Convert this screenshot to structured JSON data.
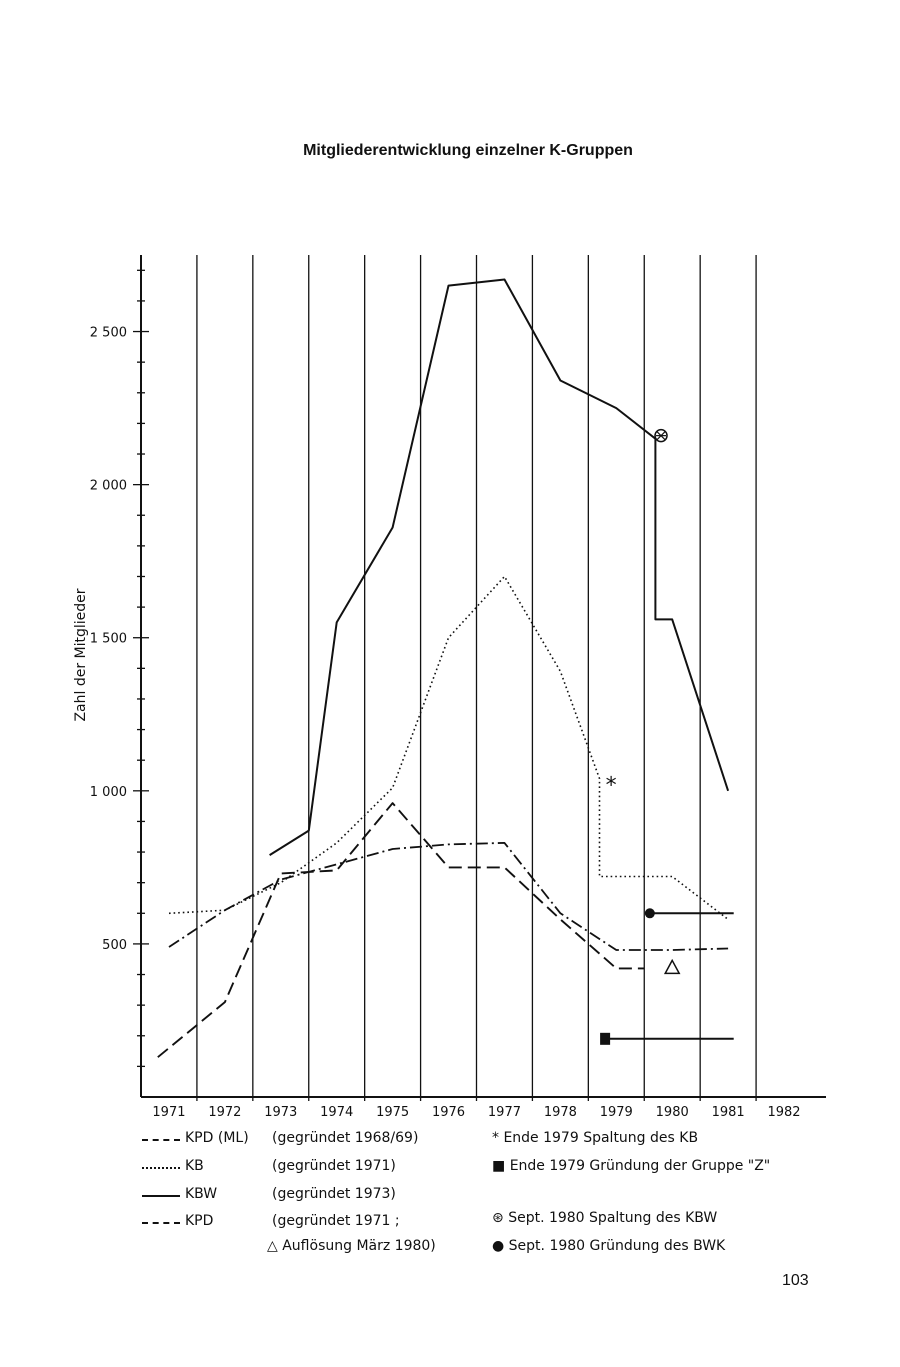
{
  "page_title": "Mitgliederentwicklung einzelner K-Gruppen",
  "page_number": "103",
  "chart_data": {
    "type": "line",
    "title": "Mitgliederentwicklung einzelner K-Gruppen",
    "xlabel": "",
    "ylabel": "Zahl der Mitglieder",
    "x_categories": [
      "1971",
      "1972",
      "1973",
      "1974",
      "1975",
      "1976",
      "1977",
      "1978",
      "1979",
      "1980",
      "1981",
      "1982"
    ],
    "y_ticks": [
      500,
      1000,
      1500,
      2000,
      2500
    ],
    "y_tick_labels": [
      "500",
      "1 000",
      "1 500",
      "2 000",
      "2 500"
    ],
    "ylim": [
      0,
      2750
    ],
    "grid": "vertical",
    "series": [
      {
        "name": "KPD (ML)",
        "style": "dash-dot",
        "points": [
          [
            1971.5,
            490
          ],
          [
            1972.5,
            610
          ],
          [
            1973.5,
            710
          ],
          [
            1974.5,
            760
          ],
          [
            1975.5,
            810
          ],
          [
            1976.5,
            825
          ],
          [
            1977.5,
            830
          ],
          [
            1978.5,
            600
          ],
          [
            1979.5,
            480
          ],
          [
            1980.5,
            480
          ],
          [
            1981.5,
            485
          ]
        ]
      },
      {
        "name": "KB",
        "style": "dotted",
        "points": [
          [
            1971.5,
            600
          ],
          [
            1972.5,
            610
          ],
          [
            1973.5,
            700
          ],
          [
            1974.5,
            830
          ],
          [
            1975.5,
            1010
          ],
          [
            1976.5,
            1500
          ],
          [
            1977.5,
            1700
          ],
          [
            1978.5,
            1390
          ],
          [
            1979.2,
            1040
          ],
          [
            1979.2,
            720
          ],
          [
            1980.5,
            720
          ],
          [
            1981.5,
            580
          ]
        ]
      },
      {
        "name": "KBW",
        "style": "solid",
        "points": [
          [
            1973.3,
            790
          ],
          [
            1974.0,
            870
          ],
          [
            1974.5,
            1550
          ],
          [
            1975.5,
            1860
          ],
          [
            1976.5,
            2650
          ],
          [
            1977.5,
            2670
          ],
          [
            1978.5,
            2340
          ],
          [
            1979.5,
            2250
          ],
          [
            1980.2,
            2150
          ],
          [
            1980.2,
            1560
          ],
          [
            1980.5,
            1560
          ],
          [
            1981.5,
            1000
          ]
        ]
      },
      {
        "name": "KPD",
        "style": "dashed",
        "points": [
          [
            1971.3,
            130
          ],
          [
            1972.5,
            310
          ],
          [
            1973.5,
            730
          ],
          [
            1974.5,
            740
          ],
          [
            1975.5,
            960
          ],
          [
            1976.5,
            750
          ],
          [
            1977.5,
            750
          ],
          [
            1978.5,
            580
          ],
          [
            1979.5,
            420
          ],
          [
            1980.0,
            420
          ]
        ]
      },
      {
        "name": "Gruppe \"Z\"",
        "style": "solid",
        "points": [
          [
            1979.3,
            190
          ],
          [
            1981.6,
            190
          ]
        ]
      },
      {
        "name": "BWK",
        "style": "solid",
        "points": [
          [
            1980.1,
            600
          ],
          [
            1981.6,
            600
          ]
        ]
      }
    ],
    "markers": [
      {
        "symbol": "asterisk",
        "x": 1979.3,
        "y": 1040,
        "meaning": "Ende 1979 Spaltung des KB"
      },
      {
        "symbol": "square",
        "x": 1979.3,
        "y": 190,
        "meaning": "Ende 1979 Gründung der Gruppe \"Z\""
      },
      {
        "symbol": "circled-cross",
        "x": 1980.3,
        "y": 2160,
        "meaning": "Sept. 1980 Spaltung des KBW"
      },
      {
        "symbol": "dot",
        "x": 1980.1,
        "y": 600,
        "meaning": "Sept. 1980 Gründung des BWK"
      },
      {
        "symbol": "triangle",
        "x": 1980.5,
        "y": 420,
        "meaning": "Auflösung März 1980"
      }
    ],
    "legend": {
      "placement": "bottom",
      "series_entries": [
        {
          "label": "KPD (ML)",
          "desc": "(gegründet 1968/69)",
          "style": "dash-dot"
        },
        {
          "label": "KB",
          "desc": "(gegründet 1971)",
          "style": "dotted"
        },
        {
          "label": "KBW",
          "desc": "(gegründet 1973)",
          "style": "solid"
        },
        {
          "label": "KPD",
          "desc": "(gegründet 1971 ;",
          "style": "dashed"
        }
      ],
      "kpd_note": "Auflösung März 1980)",
      "marker_entries": [
        {
          "glyph": "*",
          "text": "Ende 1979 Spaltung des KB"
        },
        {
          "glyph": "■",
          "text": "Ende 1979 Gründung der Gruppe \"Z\""
        },
        {
          "glyph": "⊛",
          "text": "Sept. 1980 Spaltung des KBW"
        },
        {
          "glyph": "●",
          "text": "Sept. 1980 Gründung des BWK"
        }
      ]
    }
  }
}
